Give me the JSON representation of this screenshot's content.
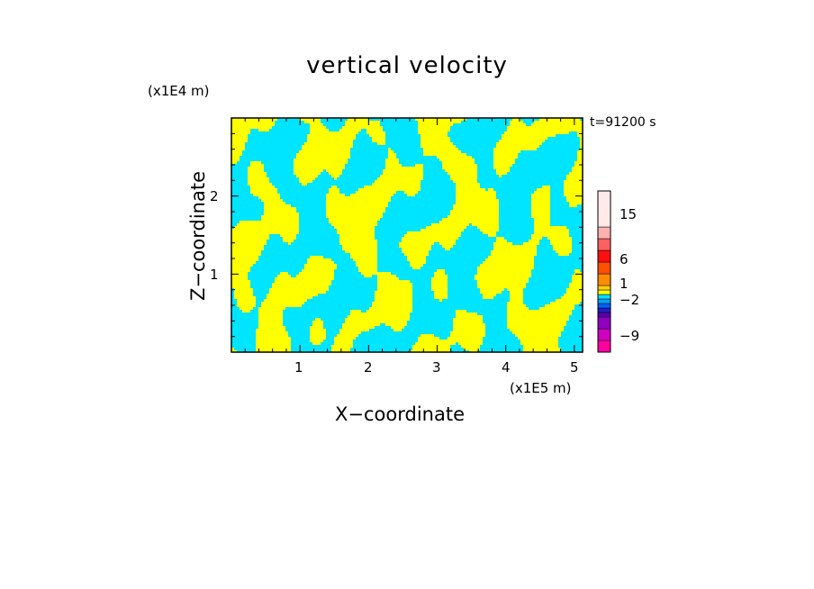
{
  "chart_data": {
    "type": "heatmap",
    "title": "vertical velocity",
    "xlabel": "X−coordinate",
    "ylabel": "Z−coordinate",
    "x_unit": "(x1E5 m)",
    "y_unit": "(x1E4 m)",
    "time_label": "t=91200 s",
    "xlim": [
      0,
      5.12
    ],
    "ylim": [
      0,
      3
    ],
    "x_ticks": [
      "1",
      "2",
      "3",
      "4",
      "5"
    ],
    "y_ticks": [
      "1",
      "2"
    ],
    "field_colors": {
      "negative": "#00e5ff",
      "positive": "#ffff00"
    },
    "colorbar": {
      "tick_labels": [
        "15",
        "6",
        "1",
        "−2",
        "−9"
      ],
      "colors_bottom_to_top": [
        "#ff00a0",
        "#d000c0",
        "#9000c0",
        "#5a00b0",
        "#2020c0",
        "#0060ff",
        "#00a0ff",
        "#00e0ff",
        "#ffff00",
        "#ffd000",
        "#ff8c00",
        "#ff5000",
        "#ff1010",
        "#ff6060",
        "#ffb0b0",
        "#ffeaea"
      ]
    }
  }
}
